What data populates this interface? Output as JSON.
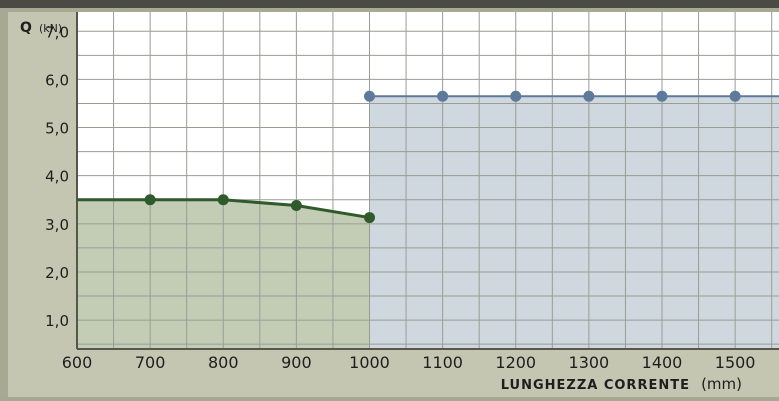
{
  "chart_data": {
    "type": "line",
    "ylabel": "Q",
    "yunit": "(kN)",
    "xlabel": "LUNGHEZZA CORRENTE",
    "xunit": "(mm)",
    "x_ticks": [
      "600",
      "700",
      "800",
      "900",
      "1000",
      "1100",
      "1200",
      "1300",
      "1400",
      "1500"
    ],
    "y_ticks": [
      "1,0",
      "2,0",
      "3,0",
      "4,0",
      "5,0",
      "6,0",
      "7,0"
    ],
    "xlim": [
      600,
      1560
    ],
    "ylim": [
      0.4,
      7.4
    ],
    "grid": true,
    "series": [
      {
        "color": "#2f5a2a",
        "fill": "#c3cdb6",
        "points": [
          [
            600,
            3.5
          ],
          [
            700,
            3.5
          ],
          [
            800,
            3.5
          ],
          [
            900,
            3.38
          ],
          [
            1000,
            3.13
          ]
        ],
        "markers": [
          700,
          800,
          900,
          1000
        ]
      },
      {
        "color": "#5e7a9a",
        "fill": "#cfd8de",
        "points": [
          [
            1000,
            5.65
          ],
          [
            1100,
            5.65
          ],
          [
            1200,
            5.65
          ],
          [
            1300,
            5.65
          ],
          [
            1400,
            5.65
          ],
          [
            1500,
            5.65
          ],
          [
            1560,
            5.65
          ]
        ],
        "markers": [
          1000,
          1100,
          1200,
          1300,
          1400,
          1500
        ]
      }
    ]
  }
}
